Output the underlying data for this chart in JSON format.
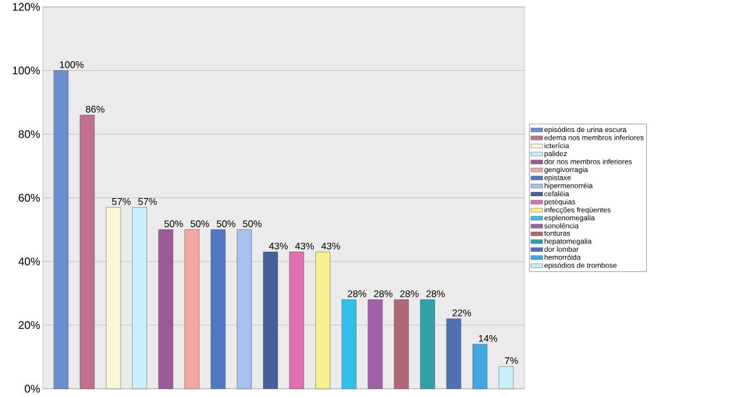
{
  "chart_data": {
    "type": "bar",
    "categories": [
      null
    ],
    "ylim": [
      0,
      120
    ],
    "yticks": [
      {
        "value": 0,
        "label": "0%"
      },
      {
        "value": 20,
        "label": "20%"
      },
      {
        "value": 40,
        "label": "40%"
      },
      {
        "value": 60,
        "label": "60%"
      },
      {
        "value": 80,
        "label": "80%"
      },
      {
        "value": 100,
        "label": "100%"
      },
      {
        "value": 120,
        "label": "120%"
      }
    ],
    "grid": "y",
    "legend": "right",
    "series": [
      {
        "name": "episódios de urina escura",
        "color": "#6d8fd0",
        "values": [
          100
        ],
        "value_labels": [
          "100%"
        ]
      },
      {
        "name": "edema nos membros inferiores",
        "color": "#c07090",
        "values": [
          86
        ],
        "value_labels": [
          "86%"
        ]
      },
      {
        "name": "icterícia",
        "color": "#fbf8d8",
        "values": [
          57
        ],
        "value_labels": [
          "57%"
        ]
      },
      {
        "name": "palidez",
        "color": "#c8f0fa",
        "values": [
          57
        ],
        "value_labels": [
          "57%"
        ]
      },
      {
        "name": "dor nos membros inferiores",
        "color": "#9a5a9a",
        "values": [
          50
        ],
        "value_labels": [
          "50%"
        ]
      },
      {
        "name": "gengivorragia",
        "color": "#f4a8a0",
        "values": [
          50
        ],
        "value_labels": [
          "50%"
        ]
      },
      {
        "name": "epistaxe",
        "color": "#4f78c0",
        "values": [
          50
        ],
        "value_labels": [
          "50%"
        ]
      },
      {
        "name": "hipermenorréia",
        "color": "#a8c0ee",
        "values": [
          50
        ],
        "value_labels": [
          "50%"
        ]
      },
      {
        "name": "cefaléia",
        "color": "#45609a",
        "values": [
          43
        ],
        "value_labels": [
          "43%"
        ]
      },
      {
        "name": "petéquias",
        "color": "#e070b0",
        "values": [
          43
        ],
        "value_labels": [
          "43%"
        ]
      },
      {
        "name": "infecções freqüentes",
        "color": "#f8f090",
        "values": [
          43
        ],
        "value_labels": [
          "43%"
        ]
      },
      {
        "name": "esplenomegalia",
        "color": "#30c0ea",
        "values": [
          28
        ],
        "value_labels": [
          "28%"
        ]
      },
      {
        "name": "sonolência",
        "color": "#a060a8",
        "values": [
          28
        ],
        "value_labels": [
          "28%"
        ]
      },
      {
        "name": "tonturas",
        "color": "#b06878",
        "values": [
          28
        ],
        "value_labels": [
          "28%"
        ]
      },
      {
        "name": "hepatomegalia",
        "color": "#30a0a8",
        "values": [
          28
        ],
        "value_labels": [
          "28%"
        ]
      },
      {
        "name": "dor lombar",
        "color": "#5070b8",
        "values": [
          22
        ],
        "value_labels": [
          "22%"
        ]
      },
      {
        "name": "hemorróida",
        "color": "#40a8e0",
        "values": [
          14
        ],
        "value_labels": [
          "14%"
        ]
      },
      {
        "name": "episódios de trombose",
        "color": "#c8f0fa",
        "values": [
          7
        ],
        "value_labels": [
          "7%"
        ]
      }
    ]
  }
}
